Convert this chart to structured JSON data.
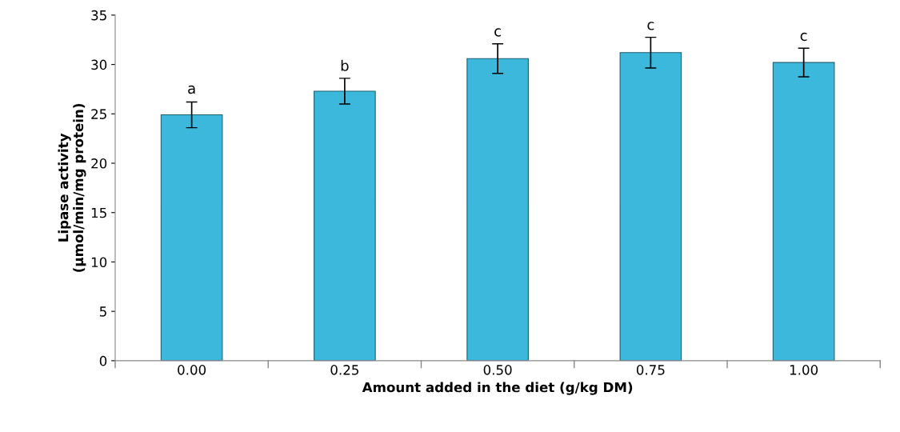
{
  "chart_data": {
    "type": "bar",
    "xlabel": "Amount added in the diet (g/kg DM)",
    "ylabel": "Lipase activity\n(µmol/min/mg protein)",
    "categories": [
      "0.00",
      "0.25",
      "0.50",
      "0.75",
      "1.00"
    ],
    "values": [
      24.9,
      27.3,
      30.6,
      31.2,
      30.2
    ],
    "errors": [
      1.3,
      1.3,
      1.5,
      1.55,
      1.45
    ],
    "color": "#3bb8dc",
    "ylim": [
      0,
      35
    ],
    "yticks": [
      0,
      5,
      10,
      15,
      20,
      25,
      30,
      35
    ],
    "grid": false,
    "annotations": [
      {
        "text": "a",
        "x": "0.00",
        "y": 26.3
      },
      {
        "text": "b",
        "x": "0.25",
        "y": 28.6
      },
      {
        "text": "c",
        "x": "0.50",
        "y": 32.1
      },
      {
        "text": "c",
        "x": "0.75",
        "y": 32.75
      },
      {
        "text": "c",
        "x": "1.00",
        "y": 31.65
      }
    ]
  }
}
